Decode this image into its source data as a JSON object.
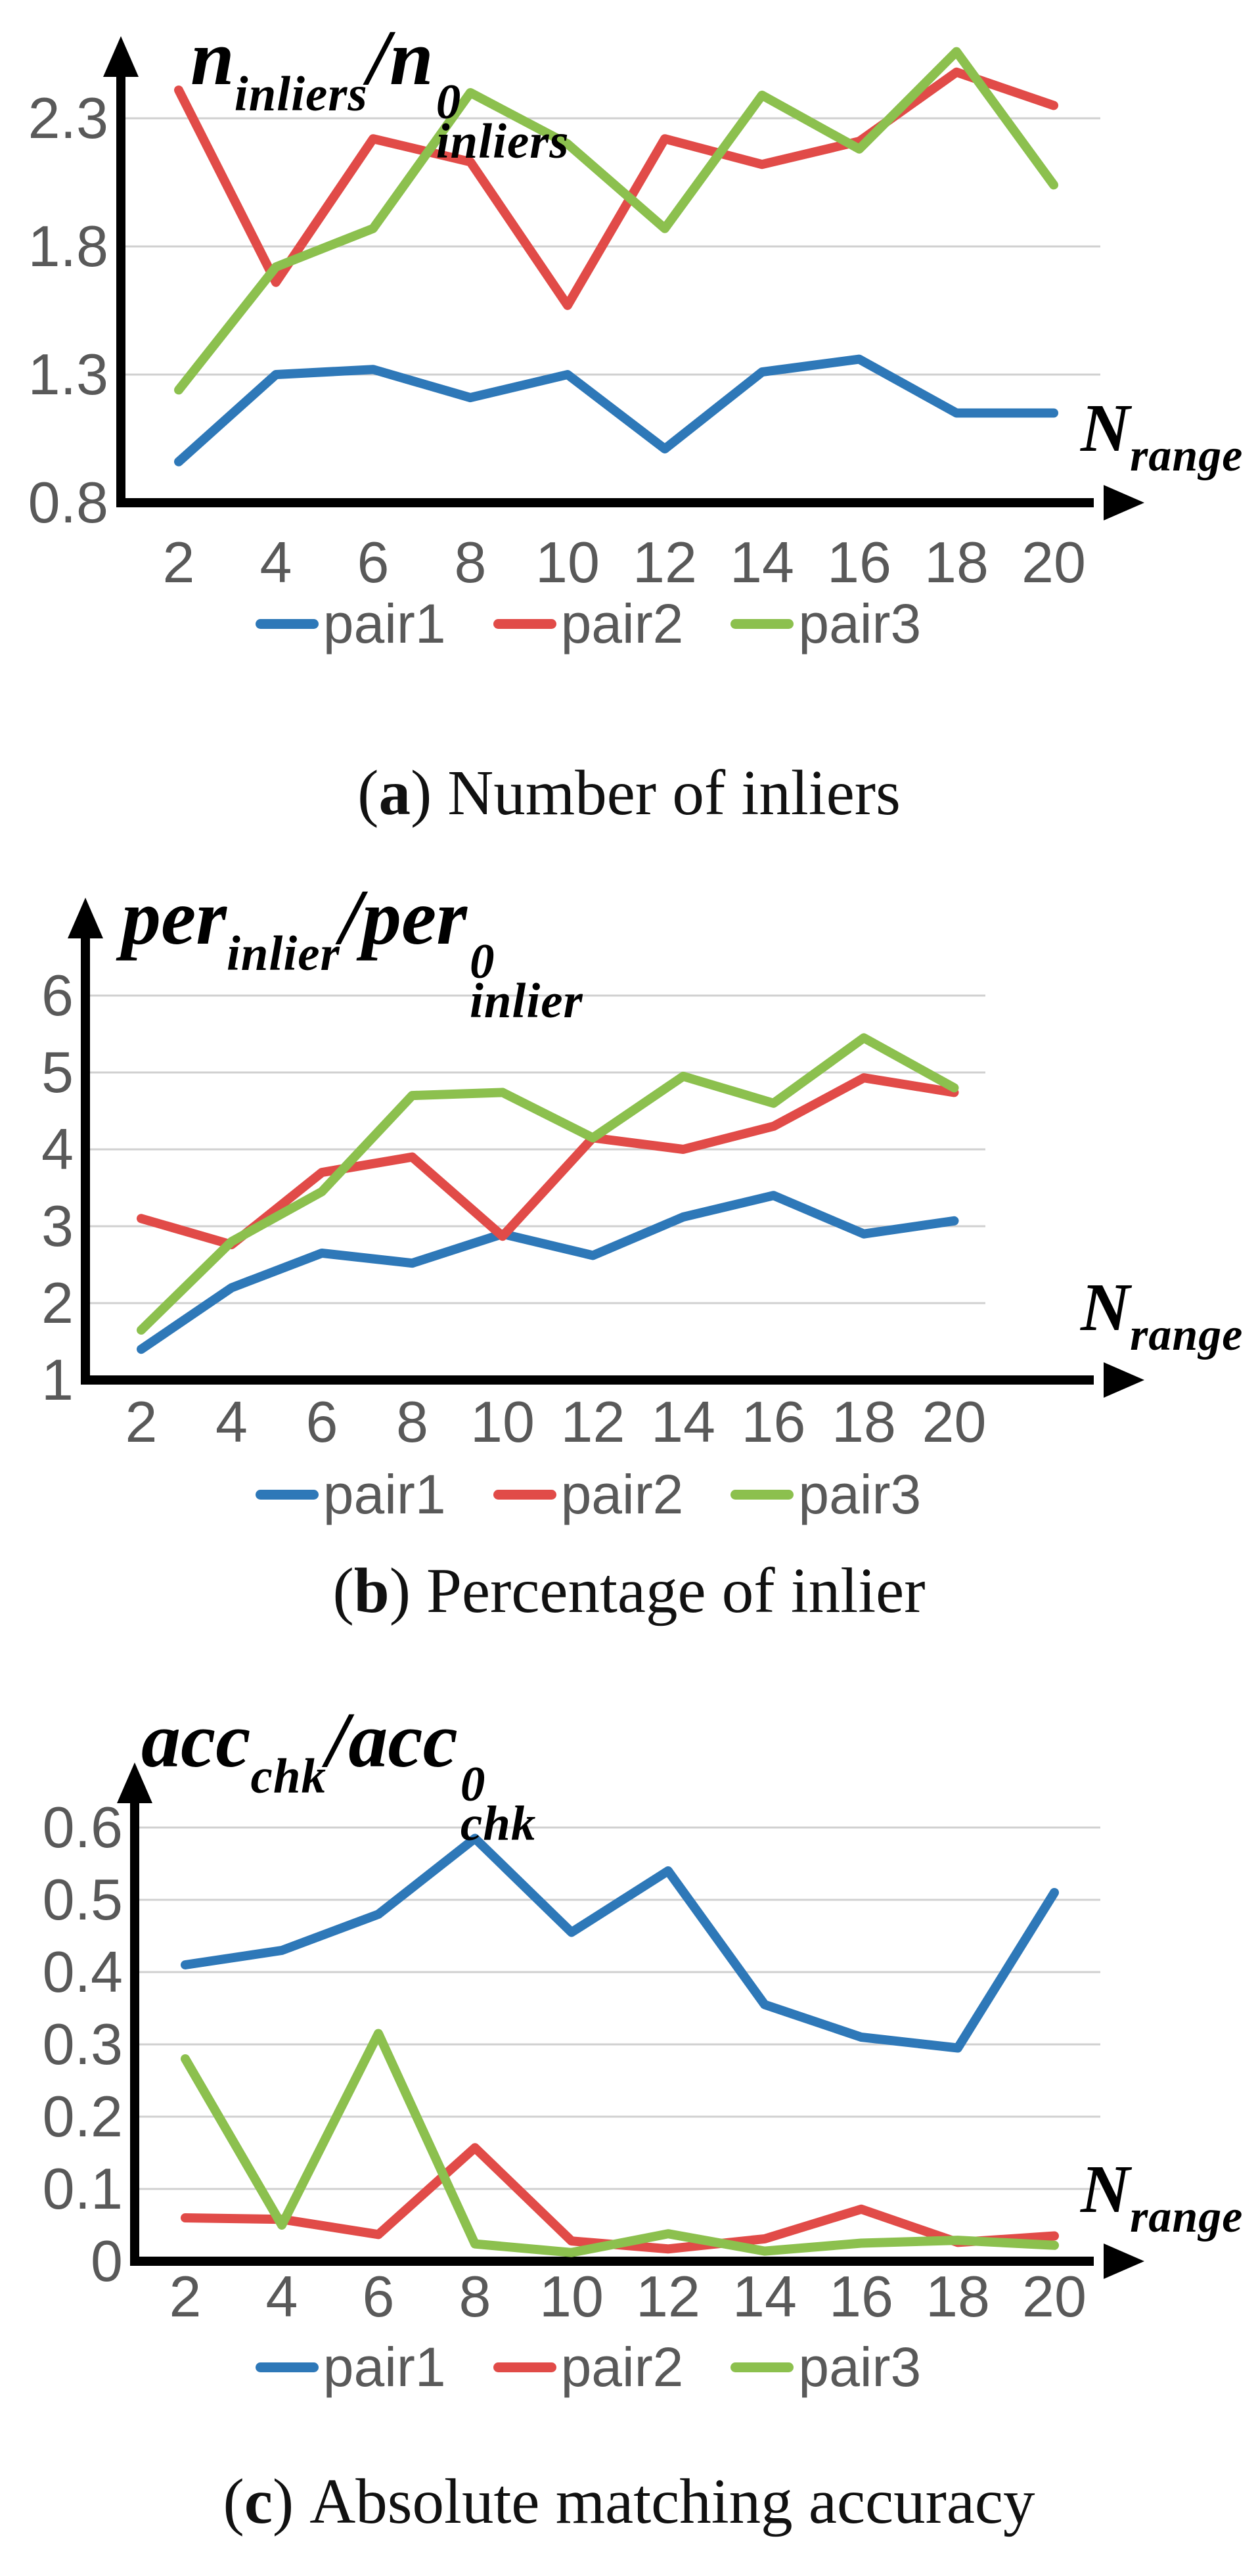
{
  "figure": {
    "x_axis_label": {
      "base": "N",
      "sub": "range"
    },
    "legend_labels": [
      "pair1",
      "pair2",
      "pair3"
    ],
    "colors": {
      "pair1": "#2E78B8",
      "pair2": "#E14B48",
      "pair3": "#8CC04E",
      "grid": "#D0D0D0",
      "axis": "#000000",
      "ticks": "#595959"
    }
  },
  "chart_data": [
    {
      "type": "line",
      "id": "a",
      "y_axis_title": "n_inliers/n0_inliers",
      "x_axis_title": "N_range",
      "y_title": {
        "base1": "n",
        "sub1": "inliers",
        "mid": "/n",
        "sup": "0",
        "sub2": "inliers"
      },
      "caption_label": "a",
      "caption_text": "Number of inliers",
      "x": [
        2,
        4,
        6,
        8,
        10,
        12,
        14,
        16,
        18,
        20
      ],
      "x_tick_labels": [
        "2",
        "4",
        "6",
        "8",
        "10",
        "12",
        "14",
        "16",
        "18",
        "20"
      ],
      "ylim": [
        0.8,
        2.62
      ],
      "yticks": [
        0.8,
        1.3,
        1.8,
        2.3
      ],
      "ytick_labels": [
        "0.8",
        "1.3",
        "1.8",
        "2.3"
      ],
      "grid": true,
      "legend_position": "bottom",
      "legend": [
        "pair1",
        "pair2",
        "pair3"
      ],
      "series": [
        {
          "name": "pair1",
          "color": "#2E78B8",
          "values": [
            0.96,
            1.3,
            1.32,
            1.21,
            1.3,
            1.01,
            1.31,
            1.36,
            1.15,
            1.15
          ]
        },
        {
          "name": "pair2",
          "color": "#E14B48",
          "values": [
            2.41,
            1.66,
            2.22,
            2.13,
            1.57,
            2.22,
            2.12,
            2.21,
            2.48,
            2.35
          ]
        },
        {
          "name": "pair3",
          "color": "#8CC04E",
          "values": [
            1.24,
            1.72,
            1.87,
            2.4,
            2.2,
            1.87,
            2.39,
            2.18,
            2.56,
            2.04
          ]
        }
      ]
    },
    {
      "type": "line",
      "id": "b",
      "y_axis_title": "per_inlier/per0_inlier",
      "x_axis_title": "N_range",
      "y_title": {
        "base1": "per",
        "sub1": "inlier",
        "mid": "/per",
        "sup": "0",
        "sub2": "inlier"
      },
      "caption_label": "b",
      "caption_text": "Percentage of inlier",
      "x": [
        2,
        4,
        6,
        8,
        10,
        12,
        14,
        16,
        18,
        20
      ],
      "x_tick_labels": [
        "2",
        "4",
        "6",
        "8",
        "10",
        "12",
        "14",
        "16",
        "18",
        "20"
      ],
      "ylim": [
        1,
        6.45
      ],
      "yticks": [
        1,
        2,
        3,
        4,
        5,
        6
      ],
      "ytick_labels": [
        "1",
        "2",
        "3",
        "4",
        "5",
        "6"
      ],
      "grid": true,
      "legend_position": "bottom",
      "legend": [
        "pair1",
        "pair2",
        "pair3"
      ],
      "series": [
        {
          "name": "pair1",
          "color": "#2E78B8",
          "values": [
            1.4,
            2.2,
            2.65,
            2.52,
            2.9,
            2.62,
            3.12,
            3.4,
            2.9,
            3.07
          ]
        },
        {
          "name": "pair2",
          "color": "#E14B48",
          "values": [
            3.1,
            2.76,
            3.7,
            3.9,
            2.87,
            4.15,
            4.0,
            4.3,
            4.93,
            4.74
          ]
        },
        {
          "name": "pair3",
          "color": "#8CC04E",
          "values": [
            1.65,
            2.8,
            3.45,
            4.7,
            4.74,
            4.15,
            4.95,
            4.6,
            5.45,
            4.8
          ]
        }
      ]
    },
    {
      "type": "line",
      "id": "c",
      "y_axis_title": "acc_chk/acc0_chk",
      "x_axis_title": "N_range",
      "y_title": {
        "base1": "acc",
        "sub1": "chk",
        "mid": "/acc",
        "sup": "0",
        "sub2": "chk"
      },
      "caption_label": "c",
      "caption_text": "Absolute matching accuracy",
      "x": [
        2,
        4,
        6,
        8,
        10,
        12,
        14,
        16,
        18,
        20
      ],
      "x_tick_labels": [
        "2",
        "4",
        "6",
        "8",
        "10",
        "12",
        "14",
        "16",
        "18",
        "20"
      ],
      "ylim": [
        0,
        0.66
      ],
      "yticks": [
        0,
        0.1,
        0.2,
        0.3,
        0.4,
        0.5,
        0.6
      ],
      "ytick_labels": [
        "0",
        "0.1",
        "0.2",
        "0.3",
        "0.4",
        "0.5",
        "0.6"
      ],
      "grid": true,
      "legend_position": "bottom",
      "legend": [
        "pair1",
        "pair2",
        "pair3"
      ],
      "series": [
        {
          "name": "pair1",
          "color": "#2E78B8",
          "values": [
            0.41,
            0.43,
            0.48,
            0.585,
            0.455,
            0.54,
            0.355,
            0.31,
            0.295,
            0.51
          ]
        },
        {
          "name": "pair2",
          "color": "#E14B48",
          "values": [
            0.06,
            0.058,
            0.037,
            0.157,
            0.028,
            0.017,
            0.031,
            0.072,
            0.026,
            0.035
          ]
        },
        {
          "name": "pair3",
          "color": "#8CC04E",
          "values": [
            0.28,
            0.05,
            0.315,
            0.024,
            0.012,
            0.038,
            0.014,
            0.025,
            0.029,
            0.022
          ]
        }
      ]
    }
  ]
}
